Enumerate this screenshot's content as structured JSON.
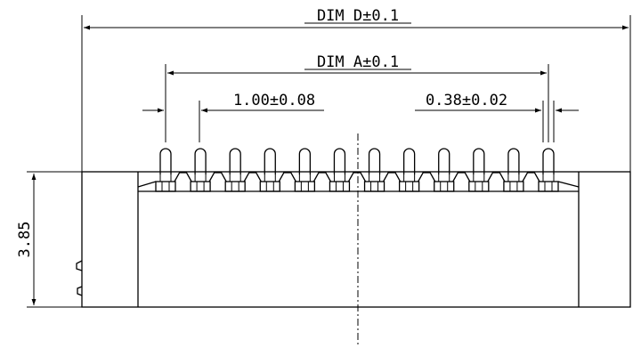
{
  "drawing": {
    "dim_d_label": "DIM D±0.1",
    "dim_a_label": "DIM A±0.1",
    "pitch_label": "1.00±0.08",
    "pin_width_label": "0.38±0.02",
    "height_label": "3.85",
    "pin_count": 12
  }
}
